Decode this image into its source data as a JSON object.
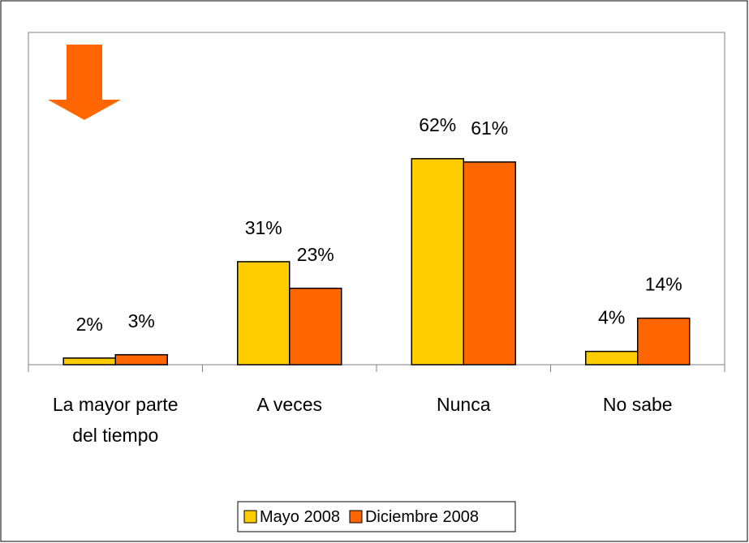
{
  "chart_data": {
    "type": "bar",
    "categories": [
      "La mayor parte del tiempo",
      "A veces",
      "Nunca",
      "No sabe"
    ],
    "series": [
      {
        "name": "Mayo 2008",
        "color": "#ffcc00",
        "values": [
          2,
          31,
          62,
          4
        ],
        "value_labels": [
          "2%",
          "31%",
          "62%",
          "4%"
        ]
      },
      {
        "name": "Diciembre 2008",
        "color": "#ff6600",
        "values": [
          3,
          23,
          61,
          14
        ],
        "value_labels": [
          "3%",
          "23%",
          "61%",
          "14%"
        ]
      }
    ],
    "ylim": [
      0,
      100
    ],
    "legend": "bottom"
  }
}
